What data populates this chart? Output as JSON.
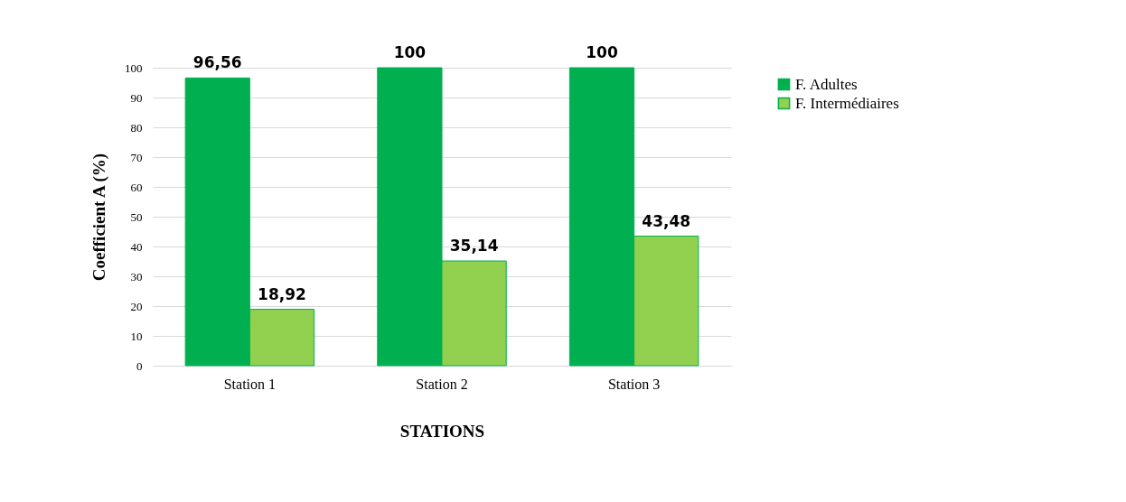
{
  "chart_data": {
    "type": "bar",
    "xlabel": "STATIONS",
    "ylabel": "Coefficient A (%)",
    "categories": [
      "Station 1",
      "Station 2",
      "Station 3"
    ],
    "series": [
      {
        "name": "F. Adultes",
        "color": "#00b050",
        "values": [
          96.56,
          100,
          100
        ],
        "value_labels": [
          "96,56",
          "100",
          "100"
        ]
      },
      {
        "name": "F. Intermédiaires",
        "color": "#92d050",
        "values": [
          18.92,
          35.14,
          43.48
        ],
        "value_labels": [
          "18,92",
          "35,14",
          "43,48"
        ]
      }
    ],
    "ylim": [
      0,
      100
    ],
    "yticks": [
      0,
      10,
      20,
      30,
      40,
      50,
      60,
      70,
      80,
      90,
      100
    ],
    "grid": "y",
    "legend": "right"
  }
}
